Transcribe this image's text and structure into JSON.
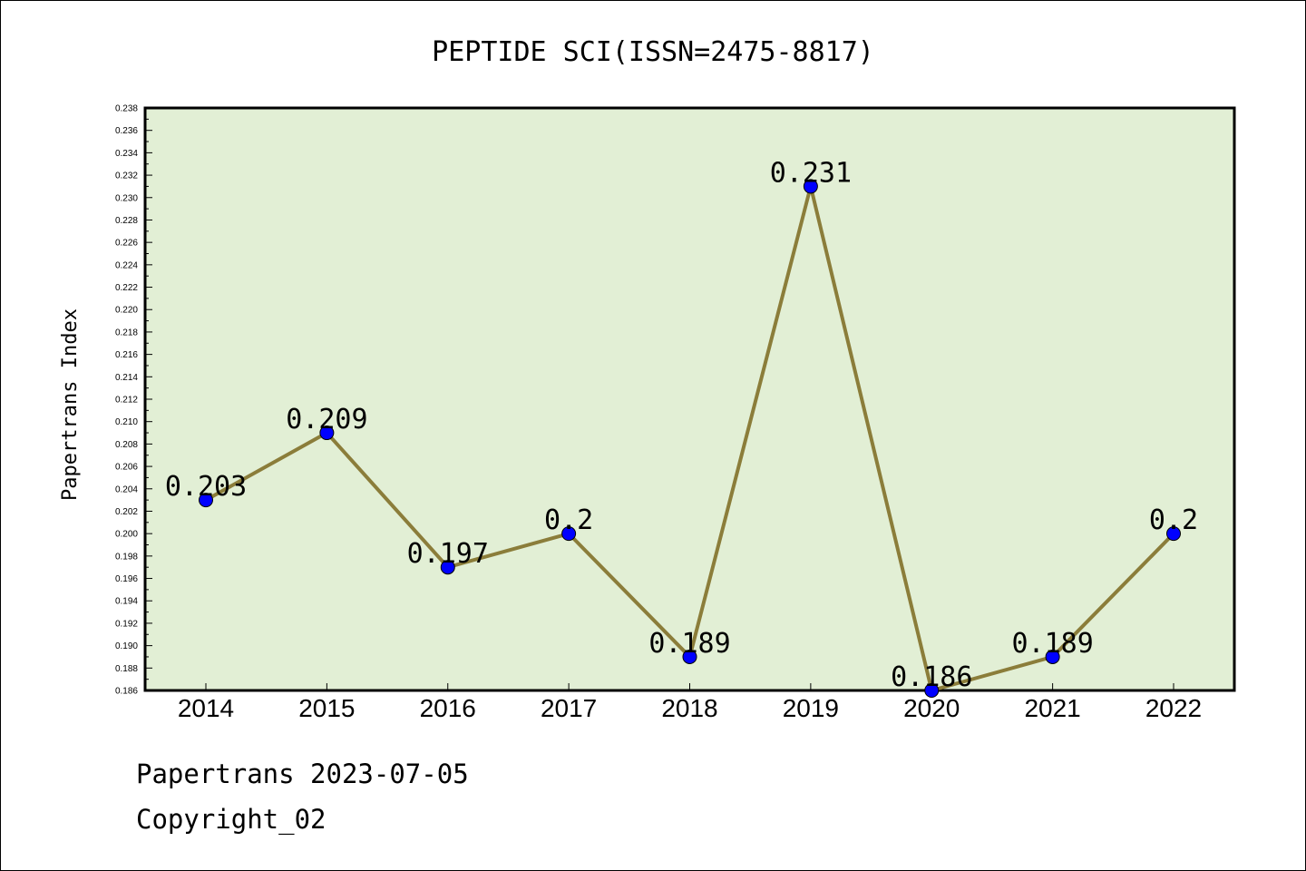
{
  "chart_data": {
    "type": "line",
    "title": "PEPTIDE SCI(ISSN=2475-8817)",
    "xlabel": "",
    "ylabel": "Papertrans Index",
    "categories": [
      "2014",
      "2015",
      "2016",
      "2017",
      "2018",
      "2019",
      "2020",
      "2021",
      "2022"
    ],
    "series": [
      {
        "values": [
          0.203,
          0.209,
          0.197,
          0.2,
          0.189,
          0.231,
          0.186,
          0.189,
          0.2
        ],
        "labels": [
          "0.203",
          "0.209",
          "0.197",
          "0.2",
          "0.189",
          "0.231",
          "0.186",
          "0.189",
          "0.2"
        ]
      }
    ],
    "ylim": [
      0.186,
      0.238
    ],
    "ytick_step": 0.002,
    "grid": false,
    "legend": "none"
  },
  "colors": {
    "plot_background": "#e2efd5",
    "line": "#8b7d3a",
    "marker": "#0000ff"
  },
  "footer": {
    "date_line": "Papertrans 2023-07-05",
    "copyright": "Copyright_02"
  }
}
